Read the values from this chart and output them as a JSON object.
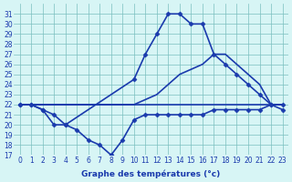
{
  "line1_x": [
    0,
    1,
    2,
    3,
    4,
    10,
    11,
    12,
    13,
    14,
    15,
    16,
    17,
    18,
    19,
    20,
    21,
    22,
    23
  ],
  "line1_y": [
    22,
    22,
    21.5,
    21,
    20,
    24.5,
    27,
    29,
    31,
    31,
    30,
    30,
    27,
    26,
    25,
    24,
    23,
    22,
    22
  ],
  "line2_x": [
    0,
    10,
    11,
    12,
    13,
    14,
    15,
    16,
    17,
    18,
    19,
    20,
    21,
    22,
    23
  ],
  "line2_y": [
    22,
    22,
    22.5,
    23,
    24,
    25,
    25.5,
    26,
    27,
    27,
    26,
    25,
    24,
    22,
    22
  ],
  "line3_x": [
    0,
    1,
    2,
    3,
    4,
    5,
    6,
    7,
    8,
    9,
    10,
    11,
    12,
    13,
    14,
    15,
    16,
    17,
    18,
    19,
    20,
    21,
    22,
    23
  ],
  "line3_y": [
    22,
    22,
    21.5,
    20,
    20,
    19.5,
    18.5,
    18,
    17,
    18.5,
    20.5,
    21,
    21,
    21,
    21,
    21,
    21,
    21.5,
    21.5,
    21.5,
    21.5,
    21.5,
    22,
    21.5
  ],
  "xlim": [
    -0.5,
    23.5
  ],
  "ylim": [
    17,
    32
  ],
  "xlabel": "Graphe des températures (°c)",
  "line_color": "#1a3aad",
  "bg_color": "#d7f5f5",
  "grid_color": "#7bbfbf",
  "marker": "D",
  "markersize": 2.5,
  "linewidth": 1.2,
  "tick_fontsize": 5.5,
  "xlabel_fontsize": 6.5
}
